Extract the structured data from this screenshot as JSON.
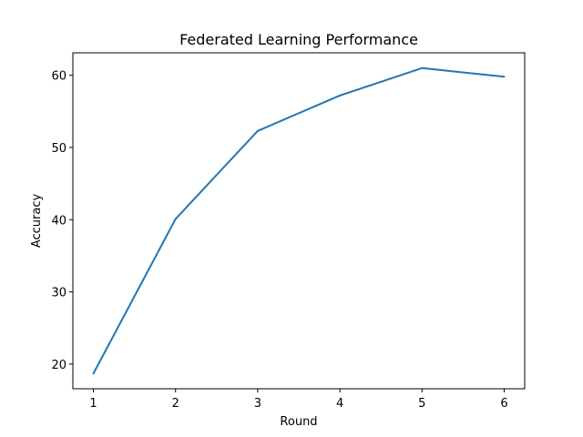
{
  "chart_data": {
    "type": "line",
    "title": "Federated Learning Performance",
    "xlabel": "Round",
    "ylabel": "Accuracy",
    "x": [
      1,
      2,
      3,
      4,
      5,
      6
    ],
    "series": [
      {
        "values": [
          18.7,
          40.1,
          52.3,
          57.2,
          61.0,
          59.8
        ],
        "color": "#1f77b4"
      }
    ],
    "xticks": [
      1,
      2,
      3,
      4,
      5,
      6
    ],
    "yticks": [
      20,
      30,
      40,
      50,
      60
    ],
    "xlim": [
      0.75,
      6.25
    ],
    "ylim": [
      16.585,
      63.115
    ],
    "grid": false,
    "legend": "none"
  }
}
